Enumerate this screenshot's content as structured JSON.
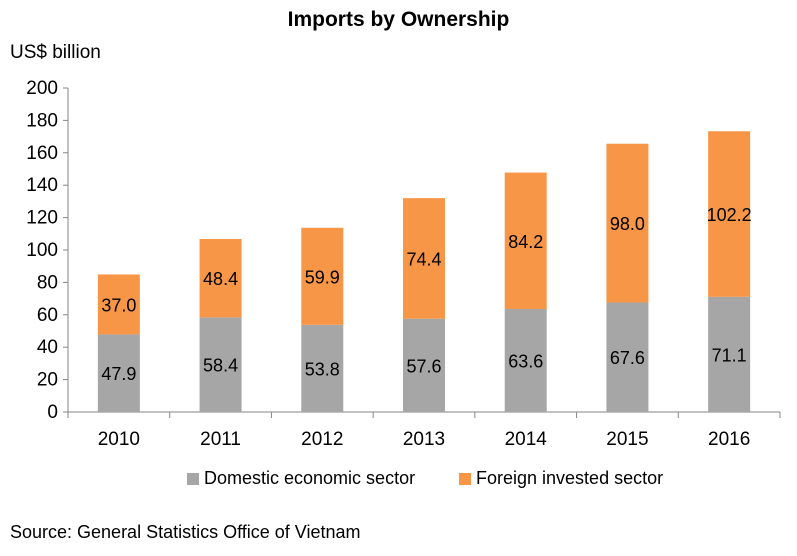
{
  "chart_data": {
    "type": "bar",
    "stacked": true,
    "title": "Imports by Ownership",
    "ylabel": "US$ billion",
    "xlabel": "",
    "categories": [
      "2010",
      "2011",
      "2012",
      "2013",
      "2014",
      "2015",
      "2016"
    ],
    "ylim": [
      0,
      200
    ],
    "yticks": [
      0,
      20,
      40,
      60,
      80,
      100,
      120,
      140,
      160,
      180,
      200
    ],
    "grid": false,
    "legend_position": "bottom",
    "series": [
      {
        "name": "Domestic economic sector",
        "color": "#a6a6a6",
        "values": [
          47.9,
          58.4,
          53.8,
          57.6,
          63.6,
          67.6,
          71.1
        ],
        "labels": [
          "47.9",
          "58.4",
          "53.8",
          "57.6",
          "63.6",
          "67.6",
          "71.1"
        ]
      },
      {
        "name": "Foreign invested sector",
        "color": "#f79646",
        "values": [
          37.0,
          48.4,
          59.9,
          74.4,
          84.2,
          98.0,
          102.2
        ],
        "labels": [
          "37.0",
          "48.4",
          "59.9",
          "74.4",
          "84.2",
          "98.0",
          "102.2"
        ]
      }
    ]
  },
  "source": "Source: General Statistics Office of Vietnam"
}
